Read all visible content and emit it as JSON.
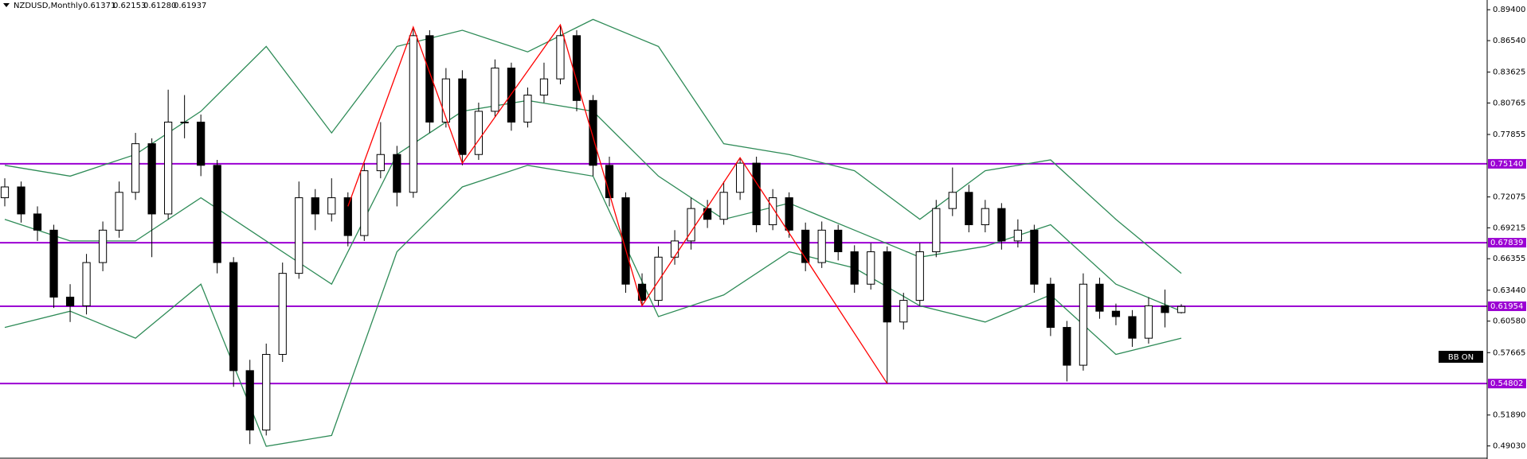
{
  "chart_data": {
    "type": "candlestick",
    "symbol": "NZDUSD,Monthly",
    "last_bar_labels": [
      "0.61371",
      "0.62153",
      "0.61280",
      "0.61937"
    ],
    "bb_label": "BB ON",
    "ylim": [
      0.4782,
      0.903
    ],
    "yticks": [
      {
        "value": 0.894,
        "label": "0.89400"
      },
      {
        "value": 0.8654,
        "label": "0.86540"
      },
      {
        "value": 0.83625,
        "label": "0.83625"
      },
      {
        "value": 0.80765,
        "label": "0.80765"
      },
      {
        "value": 0.77855,
        "label": "0.77855"
      },
      {
        "value": 0.72075,
        "label": "0.72075"
      },
      {
        "value": 0.69215,
        "label": "0.69215"
      },
      {
        "value": 0.66355,
        "label": "0.66355"
      },
      {
        "value": 0.6344,
        "label": "0.63440"
      },
      {
        "value": 0.6058,
        "label": "0.60580"
      },
      {
        "value": 0.57665,
        "label": "0.57665"
      },
      {
        "value": 0.5189,
        "label": "0.51890"
      },
      {
        "value": 0.4903,
        "label": "0.49030"
      }
    ],
    "levels": [
      {
        "value": 0.7514,
        "label": "0.75140"
      },
      {
        "value": 0.67839,
        "label": "0.67839"
      },
      {
        "value": 0.61954,
        "label": "0.61954"
      },
      {
        "value": 0.54802,
        "label": "0.54802"
      }
    ],
    "level_color": "#9b00d3",
    "candles": {
      "open": [
        0.72,
        0.73,
        0.705,
        0.69,
        0.628,
        0.62,
        0.66,
        0.69,
        0.725,
        0.77,
        0.705,
        0.79,
        0.79,
        0.75,
        0.66,
        0.56,
        0.505,
        0.575,
        0.65,
        0.72,
        0.705,
        0.72,
        0.685,
        0.745,
        0.76,
        0.725,
        0.87,
        0.79,
        0.83,
        0.76,
        0.8,
        0.84,
        0.79,
        0.815,
        0.83,
        0.87,
        0.81,
        0.75,
        0.72,
        0.64,
        0.625,
        0.665,
        0.68,
        0.71,
        0.7,
        0.725,
        0.752,
        0.695,
        0.72,
        0.69,
        0.66,
        0.69,
        0.67,
        0.64,
        0.67,
        0.605,
        0.625,
        0.67,
        0.71,
        0.725,
        0.695,
        0.71,
        0.68,
        0.69,
        0.64,
        0.6,
        0.565,
        0.64,
        0.615,
        0.61,
        0.59,
        0.62,
        0.61371
      ],
      "high": [
        0.738,
        0.735,
        0.712,
        0.695,
        0.64,
        0.668,
        0.698,
        0.735,
        0.78,
        0.775,
        0.82,
        0.815,
        0.797,
        0.755,
        0.665,
        0.57,
        0.585,
        0.66,
        0.735,
        0.728,
        0.738,
        0.725,
        0.752,
        0.79,
        0.768,
        0.878,
        0.875,
        0.84,
        0.838,
        0.808,
        0.848,
        0.845,
        0.822,
        0.845,
        0.88,
        0.875,
        0.815,
        0.758,
        0.725,
        0.65,
        0.675,
        0.69,
        0.72,
        0.718,
        0.735,
        0.757,
        0.758,
        0.728,
        0.725,
        0.697,
        0.698,
        0.695,
        0.676,
        0.678,
        0.675,
        0.632,
        0.678,
        0.718,
        0.748,
        0.732,
        0.718,
        0.715,
        0.7,
        0.695,
        0.646,
        0.606,
        0.65,
        0.646,
        0.622,
        0.616,
        0.628,
        0.635,
        0.62153
      ],
      "low": [
        0.712,
        0.697,
        0.68,
        0.618,
        0.605,
        0.612,
        0.652,
        0.683,
        0.718,
        0.665,
        0.7,
        0.775,
        0.74,
        0.65,
        0.545,
        0.492,
        0.5,
        0.568,
        0.645,
        0.69,
        0.698,
        0.675,
        0.68,
        0.738,
        0.712,
        0.72,
        0.78,
        0.785,
        0.75,
        0.755,
        0.795,
        0.782,
        0.785,
        0.808,
        0.825,
        0.8,
        0.74,
        0.712,
        0.632,
        0.62,
        0.62,
        0.658,
        0.672,
        0.692,
        0.695,
        0.718,
        0.688,
        0.69,
        0.683,
        0.652,
        0.655,
        0.662,
        0.632,
        0.635,
        0.548,
        0.598,
        0.62,
        0.665,
        0.703,
        0.688,
        0.688,
        0.672,
        0.674,
        0.632,
        0.592,
        0.55,
        0.56,
        0.608,
        0.602,
        0.582,
        0.585,
        0.6,
        0.6128
      ],
      "close": [
        0.73,
        0.705,
        0.69,
        0.628,
        0.62,
        0.66,
        0.69,
        0.725,
        0.77,
        0.705,
        0.79,
        0.79,
        0.75,
        0.66,
        0.56,
        0.505,
        0.575,
        0.65,
        0.72,
        0.705,
        0.72,
        0.685,
        0.745,
        0.76,
        0.725,
        0.87,
        0.79,
        0.83,
        0.76,
        0.8,
        0.84,
        0.79,
        0.815,
        0.83,
        0.87,
        0.81,
        0.75,
        0.72,
        0.64,
        0.625,
        0.665,
        0.68,
        0.71,
        0.7,
        0.725,
        0.752,
        0.695,
        0.72,
        0.69,
        0.66,
        0.69,
        0.67,
        0.64,
        0.67,
        0.605,
        0.625,
        0.67,
        0.71,
        0.725,
        0.695,
        0.71,
        0.68,
        0.69,
        0.64,
        0.6,
        0.565,
        0.64,
        0.615,
        0.61,
        0.59,
        0.62,
        0.61371,
        0.61937
      ]
    },
    "bands": {
      "color": "#2e8b57",
      "x": [
        0,
        4,
        8,
        12,
        16,
        20,
        24,
        28,
        32,
        36,
        40,
        44,
        48,
        52,
        56,
        60,
        64,
        68,
        72
      ],
      "upper": [
        0.75,
        0.74,
        0.76,
        0.8,
        0.86,
        0.78,
        0.86,
        0.875,
        0.855,
        0.885,
        0.86,
        0.77,
        0.76,
        0.745,
        0.7,
        0.745,
        0.755,
        0.7,
        0.65
      ],
      "middle": [
        0.7,
        0.68,
        0.68,
        0.72,
        0.68,
        0.64,
        0.76,
        0.8,
        0.81,
        0.8,
        0.74,
        0.7,
        0.715,
        0.69,
        0.665,
        0.675,
        0.695,
        0.64,
        0.615
      ],
      "lower": [
        0.6,
        0.615,
        0.59,
        0.64,
        0.49,
        0.5,
        0.67,
        0.73,
        0.75,
        0.74,
        0.61,
        0.63,
        0.67,
        0.655,
        0.62,
        0.605,
        0.63,
        0.575,
        0.59
      ]
    },
    "zigzag": {
      "color": "#ff0000",
      "x": [
        21,
        25,
        28,
        34,
        39,
        45,
        54
      ],
      "values": [
        0.712,
        0.878,
        0.752,
        0.88,
        0.62,
        0.757,
        0.548
      ]
    }
  }
}
